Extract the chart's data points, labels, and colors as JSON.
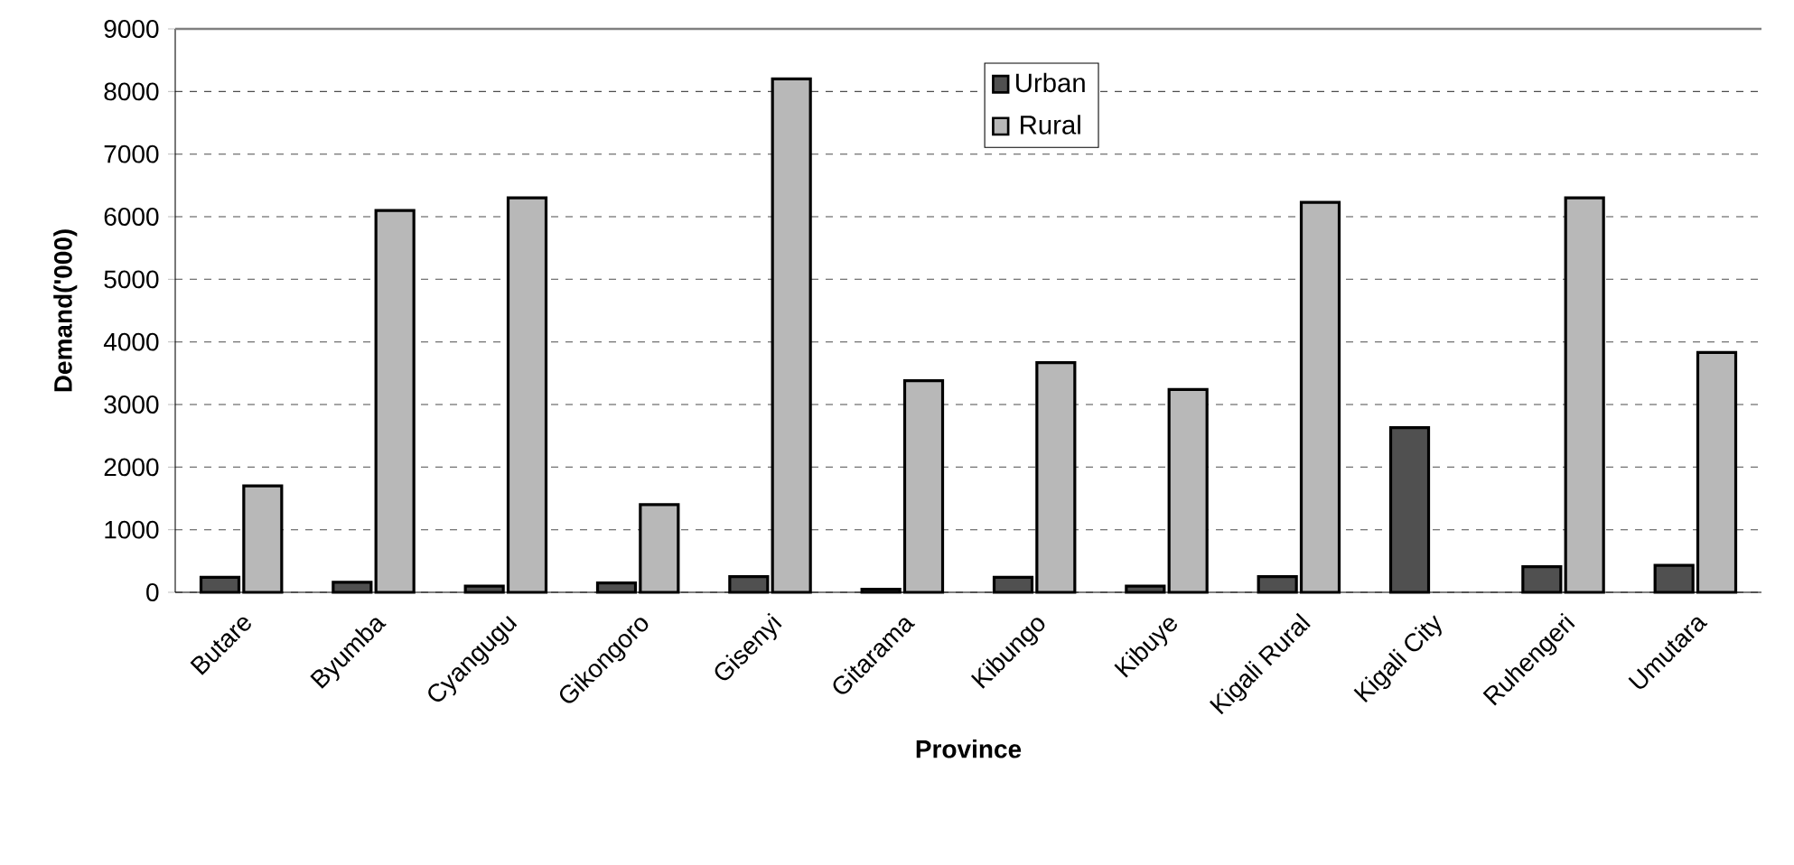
{
  "chart_data": {
    "type": "bar",
    "xlabel": "Province",
    "ylabel": "Demand('000)",
    "categories": [
      "Butare",
      "Byumba",
      "Cyangugu",
      "Gikongoro",
      "Gisenyi",
      "Gitarama",
      "Kibungo",
      "Kibuye",
      "Kigali Rural",
      "Kigali City",
      "Ruhengeri",
      "Umutara"
    ],
    "series": [
      {
        "name": "Urban",
        "color": "#505050",
        "values": [
          240,
          160,
          100,
          150,
          250,
          50,
          240,
          100,
          250,
          2630,
          410,
          430
        ]
      },
      {
        "name": "Rural",
        "color": "#b8b8b8",
        "values": [
          1700,
          6100,
          6300,
          1400,
          8200,
          3380,
          3670,
          3240,
          6230,
          null,
          6300,
          3830
        ]
      }
    ],
    "ylim": [
      0,
      9000
    ],
    "yticks": [
      0,
      1000,
      2000,
      3000,
      4000,
      5000,
      6000,
      7000,
      8000,
      9000
    ],
    "grid": "y",
    "legend": "top"
  }
}
